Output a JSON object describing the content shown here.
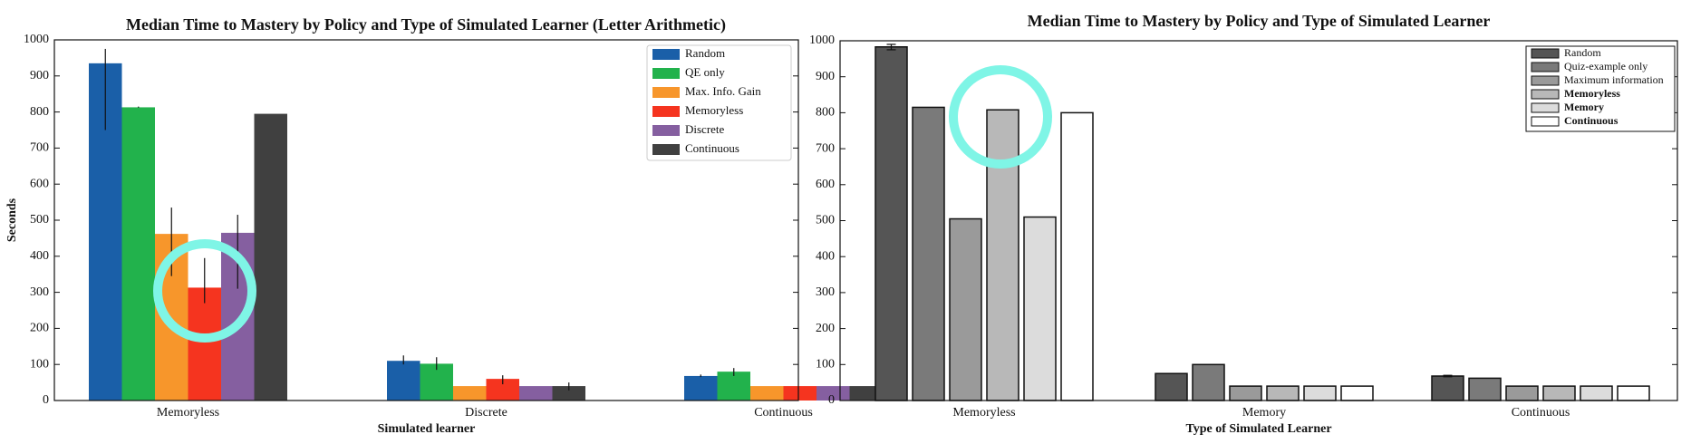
{
  "chart_data": [
    {
      "type": "bar",
      "title": "Median Time to Mastery by Policy and Type of Simulated Learner (Letter Arithmetic)",
      "y_label": "Seconds",
      "x_label": "Simulated learner",
      "categories": [
        "Memoryless",
        "Discrete",
        "Continuous"
      ],
      "ylim": [
        0,
        1000
      ],
      "yticks": [
        0,
        100,
        200,
        300,
        400,
        500,
        600,
        700,
        800,
        900,
        1000
      ],
      "legend": "upper right",
      "series": [
        {
          "name": "Random",
          "color": "#1a5fa8",
          "values": [
            935,
            110,
            68
          ],
          "err_low": [
            750,
            100,
            65
          ],
          "err_high": [
            975,
            125,
            72
          ]
        },
        {
          "name": "QE only",
          "color": "#22b24c",
          "values": [
            813,
            102,
            80
          ],
          "err_low": [
            812,
            85,
            68
          ],
          "err_high": [
            815,
            120,
            90
          ]
        },
        {
          "name": "Max. Info. Gain",
          "color": "#f7962b",
          "values": [
            462,
            40,
            40
          ],
          "err_low": [
            345,
            null,
            null
          ],
          "err_high": [
            535,
            null,
            null
          ]
        },
        {
          "name": "Memoryless",
          "color": "#f5341f",
          "values": [
            313,
            60,
            40
          ],
          "err_low": [
            270,
            45,
            null
          ],
          "err_high": [
            395,
            70,
            null
          ]
        },
        {
          "name": "Discrete",
          "color": "#855fa0",
          "values": [
            465,
            40,
            40
          ],
          "err_low": [
            310,
            null,
            null
          ],
          "err_high": [
            515,
            null,
            null
          ]
        },
        {
          "name": "Continuous",
          "color": "#404040",
          "values": [
            795,
            40,
            40
          ],
          "err_low": [
            null,
            28,
            null
          ],
          "err_high": [
            null,
            50,
            null
          ]
        }
      ]
    },
    {
      "type": "bar",
      "title": "Median Time to Mastery by Policy and Type of Simulated Learner",
      "x_label": "Type of Simulated Learner",
      "categories": [
        "Memoryless",
        "Memory",
        "Continuous"
      ],
      "ylim": [
        0,
        1000
      ],
      "yticks": [
        0,
        100,
        200,
        300,
        400,
        500,
        600,
        700,
        800,
        900,
        1000
      ],
      "legend": "upper right",
      "series": [
        {
          "name": "Random",
          "color": "#555555",
          "values": [
            983,
            75,
            68
          ],
          "err_low": [
            975,
            null,
            66
          ],
          "err_high": [
            990,
            null,
            70
          ]
        },
        {
          "name": "Quiz-example only",
          "color": "#7a7a7a",
          "values": [
            815,
            100,
            62
          ],
          "err_low": [
            null,
            null,
            null
          ],
          "err_high": [
            null,
            null,
            null
          ]
        },
        {
          "name": "Maximum information",
          "color": "#9a9a9a",
          "values": [
            505,
            40,
            40
          ],
          "err_low": [
            null,
            null,
            null
          ],
          "err_high": [
            null,
            null,
            null
          ]
        },
        {
          "name": "Memoryless",
          "color": "#b8b8b8",
          "bold": true,
          "values": [
            808,
            40,
            40
          ],
          "err_low": [
            null,
            null,
            null
          ],
          "err_high": [
            null,
            null,
            null
          ]
        },
        {
          "name": "Memory",
          "color": "#dcdcdc",
          "bold": true,
          "values": [
            510,
            40,
            40
          ],
          "err_low": [
            null,
            null,
            null
          ],
          "err_high": [
            null,
            null,
            null
          ]
        },
        {
          "name": "Continuous",
          "color": "#ffffff",
          "bold": true,
          "values": [
            800,
            40,
            40
          ],
          "err_low": [
            null,
            null,
            null
          ],
          "err_high": [
            null,
            null,
            null
          ]
        }
      ]
    }
  ]
}
